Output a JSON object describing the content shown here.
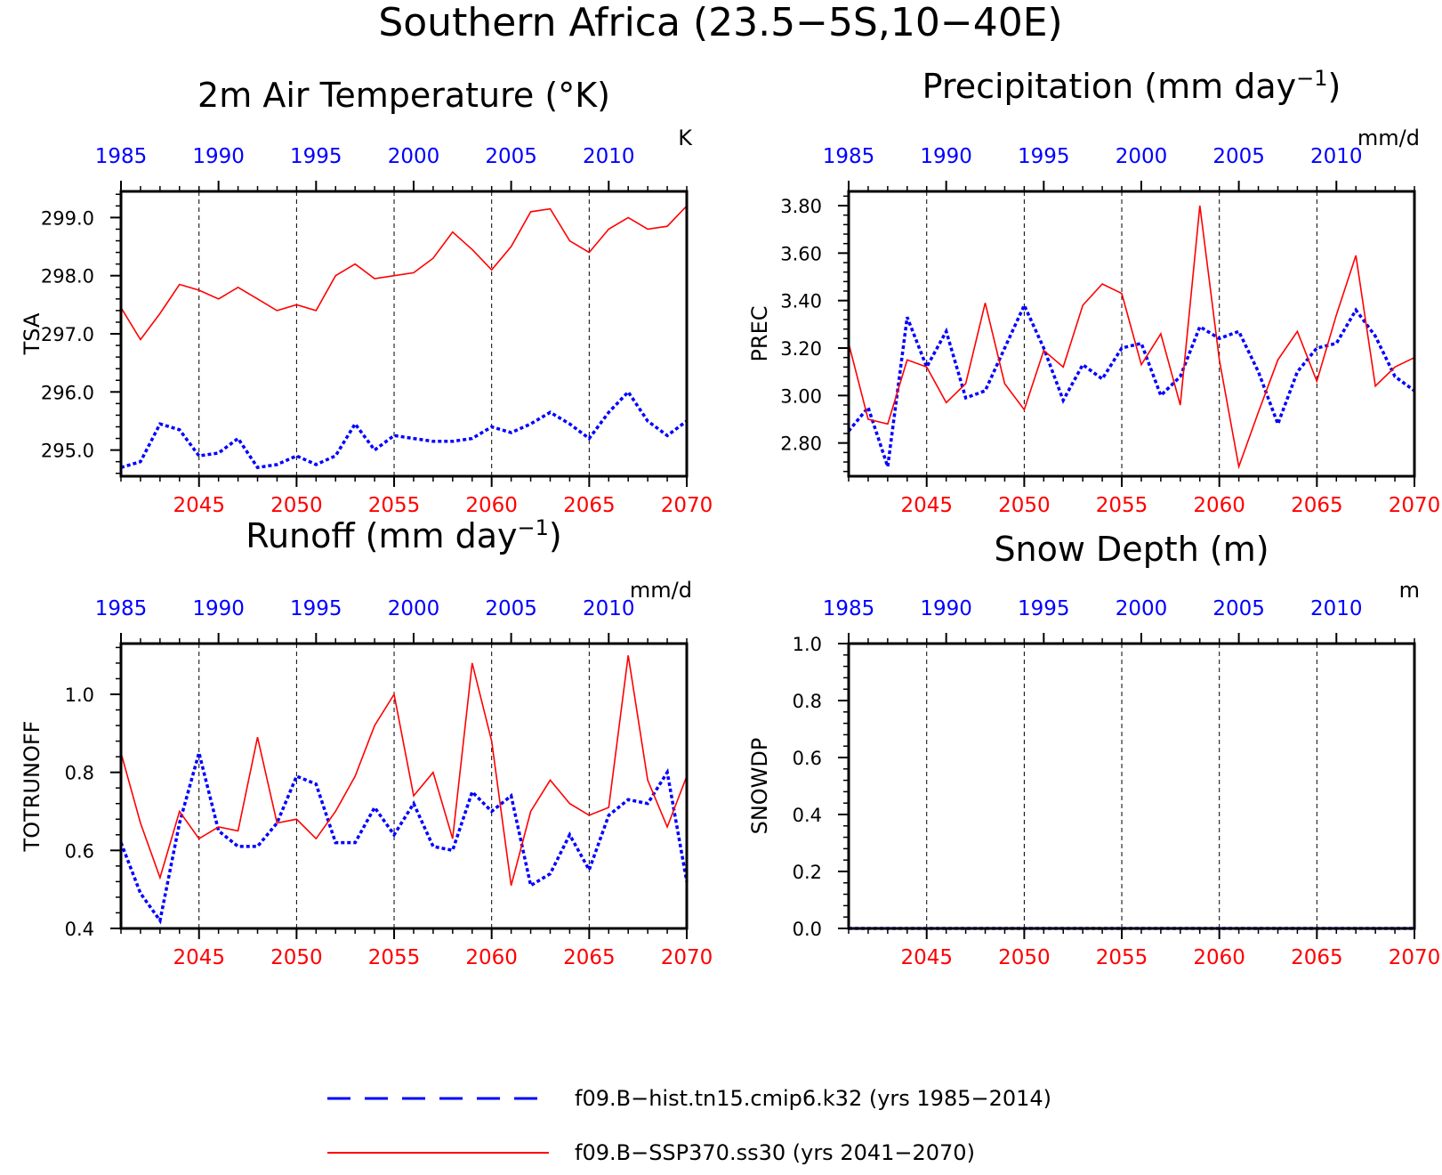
{
  "figure": {
    "title": "Southern Africa (23.5−5S,10−40E)",
    "colors": {
      "hist": "#0000ff",
      "ssp": "#ff0000",
      "axis": "#000000"
    }
  },
  "legend": [
    {
      "label": "f09.B−hist.tn15.cmip6.k32 (yrs 1985−2014)",
      "color": "#0000ff",
      "style": "dashed"
    },
    {
      "label": "f09.B−SSP370.ss30 (yrs 2041−2070)",
      "color": "#ff0000",
      "style": "solid"
    }
  ],
  "chart_data": [
    {
      "type": "line",
      "title": "2m Air Temperature (°K)",
      "ylabel": "TSA",
      "units": "K",
      "top_axis": {
        "ticks": [
          1985,
          1990,
          1995,
          2000,
          2005,
          2010
        ],
        "color": "#0000ff"
      },
      "bottom_axis": {
        "ticks": [
          2045,
          2050,
          2055,
          2060,
          2065,
          2070
        ],
        "color": "#ff0000"
      },
      "xlim": [
        2041,
        2070
      ],
      "ylim": [
        294.55,
        299.45
      ],
      "yticks": [
        "295.0",
        "296.0",
        "297.0",
        "298.0",
        "299.0"
      ],
      "x": [
        2041,
        2042,
        2043,
        2044,
        2045,
        2046,
        2047,
        2048,
        2049,
        2050,
        2051,
        2052,
        2053,
        2054,
        2055,
        2056,
        2057,
        2058,
        2059,
        2060,
        2061,
        2062,
        2063,
        2064,
        2065,
        2066,
        2067,
        2068,
        2069,
        2070
      ],
      "series": [
        {
          "key": "hist",
          "style": "dotted",
          "values": [
            294.7,
            294.8,
            295.45,
            295.35,
            294.9,
            294.95,
            295.2,
            294.7,
            294.75,
            294.9,
            294.75,
            294.9,
            295.45,
            295.0,
            295.25,
            295.2,
            295.15,
            295.15,
            295.2,
            295.4,
            295.3,
            295.45,
            295.65,
            295.45,
            295.2,
            295.65,
            296.0,
            295.5,
            295.25,
            295.5
          ]
        },
        {
          "key": "ssp",
          "style": "solid",
          "values": [
            297.45,
            296.9,
            297.35,
            297.85,
            297.75,
            297.6,
            297.8,
            297.6,
            297.4,
            297.5,
            297.4,
            298.0,
            298.2,
            297.95,
            298.0,
            298.05,
            298.3,
            298.75,
            298.45,
            298.1,
            298.5,
            299.1,
            299.15,
            298.6,
            298.4,
            298.8,
            299.0,
            298.8,
            298.85,
            299.2
          ]
        }
      ]
    },
    {
      "type": "line",
      "title": "Precipitation (mm day",
      "title_sup": "−1",
      "title_end": ")",
      "ylabel": "PREC",
      "units": "mm/d",
      "top_axis": {
        "ticks": [
          1985,
          1990,
          1995,
          2000,
          2005,
          2010
        ],
        "color": "#0000ff"
      },
      "bottom_axis": {
        "ticks": [
          2045,
          2050,
          2055,
          2060,
          2065,
          2070
        ],
        "color": "#ff0000"
      },
      "xlim": [
        2041,
        2070
      ],
      "ylim": [
        2.66,
        3.86
      ],
      "yticks": [
        "2.80",
        "3.00",
        "3.20",
        "3.40",
        "3.60",
        "3.80"
      ],
      "x": [
        2041,
        2042,
        2043,
        2044,
        2045,
        2046,
        2047,
        2048,
        2049,
        2050,
        2051,
        2052,
        2053,
        2054,
        2055,
        2056,
        2057,
        2058,
        2059,
        2060,
        2061,
        2062,
        2063,
        2064,
        2065,
        2066,
        2067,
        2068,
        2069,
        2070
      ],
      "series": [
        {
          "key": "hist",
          "style": "dotted",
          "values": [
            2.85,
            2.95,
            2.7,
            3.33,
            3.12,
            3.27,
            2.99,
            3.02,
            3.2,
            3.38,
            3.2,
            2.98,
            3.13,
            3.07,
            3.2,
            3.22,
            3.0,
            3.08,
            3.29,
            3.24,
            3.27,
            3.1,
            2.88,
            3.1,
            3.2,
            3.22,
            3.36,
            3.25,
            3.08,
            3.02
          ]
        },
        {
          "key": "ssp",
          "style": "solid",
          "values": [
            3.22,
            2.9,
            2.88,
            3.15,
            3.12,
            2.97,
            3.05,
            3.39,
            3.05,
            2.94,
            3.19,
            3.12,
            3.38,
            3.47,
            3.43,
            3.13,
            3.26,
            2.96,
            3.8,
            3.15,
            2.7,
            2.93,
            3.15,
            3.27,
            3.06,
            3.34,
            3.59,
            3.04,
            3.12,
            3.16
          ]
        }
      ]
    },
    {
      "type": "line",
      "title": "Runoff (mm day",
      "title_sup": "−1",
      "title_end": ")",
      "ylabel": "TOTRUNOFF",
      "units": "mm/d",
      "top_axis": {
        "ticks": [
          1985,
          1990,
          1995,
          2000,
          2005,
          2010
        ],
        "color": "#0000ff"
      },
      "bottom_axis": {
        "ticks": [
          2045,
          2050,
          2055,
          2060,
          2065,
          2070
        ],
        "color": "#ff0000"
      },
      "xlim": [
        2041,
        2070
      ],
      "ylim": [
        0.4,
        1.13
      ],
      "yticks": [
        "0.4",
        "0.6",
        "0.8",
        "1.0"
      ],
      "x": [
        2041,
        2042,
        2043,
        2044,
        2045,
        2046,
        2047,
        2048,
        2049,
        2050,
        2051,
        2052,
        2053,
        2054,
        2055,
        2056,
        2057,
        2058,
        2059,
        2060,
        2061,
        2062,
        2063,
        2064,
        2065,
        2066,
        2067,
        2068,
        2069,
        2070
      ],
      "series": [
        {
          "key": "hist",
          "style": "dotted",
          "values": [
            0.62,
            0.49,
            0.42,
            0.67,
            0.85,
            0.65,
            0.61,
            0.61,
            0.67,
            0.79,
            0.77,
            0.62,
            0.62,
            0.71,
            0.64,
            0.72,
            0.61,
            0.6,
            0.75,
            0.7,
            0.74,
            0.51,
            0.54,
            0.64,
            0.55,
            0.69,
            0.73,
            0.72,
            0.8,
            0.52
          ]
        },
        {
          "key": "ssp",
          "style": "solid",
          "values": [
            0.85,
            0.67,
            0.53,
            0.7,
            0.63,
            0.66,
            0.65,
            0.89,
            0.67,
            0.68,
            0.63,
            0.7,
            0.79,
            0.92,
            1.0,
            0.74,
            0.8,
            0.63,
            1.08,
            0.88,
            0.51,
            0.7,
            0.78,
            0.72,
            0.69,
            0.71,
            1.1,
            0.78,
            0.66,
            0.79
          ]
        }
      ]
    },
    {
      "type": "line",
      "title": "Snow Depth (m)",
      "ylabel": "SNOWDP",
      "units": "m",
      "top_axis": {
        "ticks": [
          1985,
          1990,
          1995,
          2000,
          2005,
          2010
        ],
        "color": "#0000ff"
      },
      "bottom_axis": {
        "ticks": [
          2045,
          2050,
          2055,
          2060,
          2065,
          2070
        ],
        "color": "#ff0000"
      },
      "xlim": [
        2041,
        2070
      ],
      "ylim": [
        0.0,
        1.0
      ],
      "yticks": [
        "0.0",
        "0.2",
        "0.4",
        "0.6",
        "0.8",
        "1.0"
      ],
      "x": [
        2041,
        2042,
        2043,
        2044,
        2045,
        2046,
        2047,
        2048,
        2049,
        2050,
        2051,
        2052,
        2053,
        2054,
        2055,
        2056,
        2057,
        2058,
        2059,
        2060,
        2061,
        2062,
        2063,
        2064,
        2065,
        2066,
        2067,
        2068,
        2069,
        2070
      ],
      "series": [
        {
          "key": "hist",
          "style": "dotted",
          "values": [
            0,
            0,
            0,
            0,
            0,
            0,
            0,
            0,
            0,
            0,
            0,
            0,
            0,
            0,
            0,
            0,
            0,
            0,
            0,
            0,
            0,
            0,
            0,
            0,
            0,
            0,
            0,
            0,
            0,
            0
          ]
        },
        {
          "key": "ssp",
          "style": "solid",
          "values": [
            0,
            0,
            0,
            0,
            0,
            0,
            0,
            0,
            0,
            0,
            0,
            0,
            0,
            0,
            0,
            0,
            0,
            0,
            0,
            0,
            0,
            0,
            0,
            0,
            0,
            0,
            0,
            0,
            0,
            0
          ]
        }
      ]
    }
  ]
}
